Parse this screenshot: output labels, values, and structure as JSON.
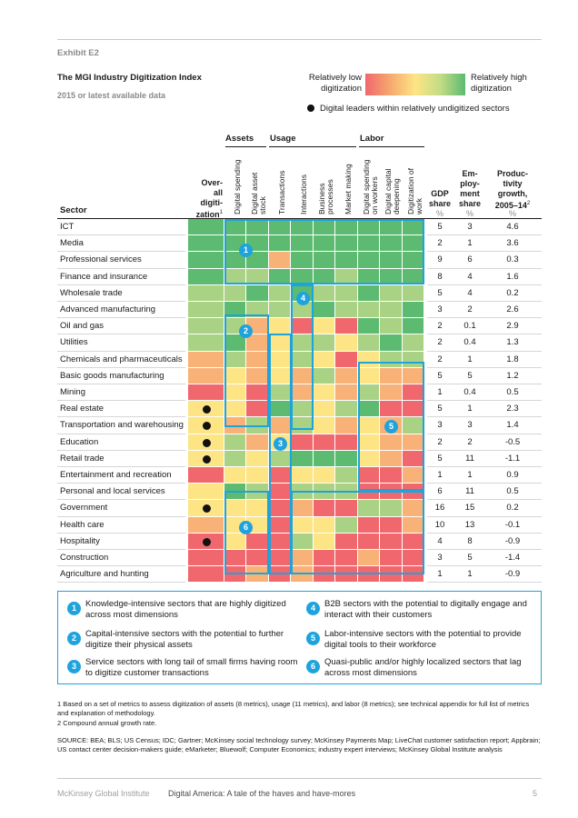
{
  "exhibit": "Exhibit E2",
  "title": "The MGI Industry Digitization Index",
  "subtitle": "2015 or latest available data",
  "legend": {
    "low": "Relatively low digitization",
    "high": "Relatively high digitization",
    "dot_label": "Digital leaders within relatively undigitized sectors"
  },
  "groups": {
    "assets": "Assets",
    "usage": "Usage",
    "labor": "Labor"
  },
  "headers": {
    "sector": "Sector",
    "overall": [
      "Over-",
      "all",
      "digiti-",
      "zation"
    ],
    "overall_sup": "1",
    "metrics": [
      [
        "Digital spending"
      ],
      [
        "Digital asset",
        "stock"
      ],
      [
        "Transactions"
      ],
      [
        "Interactions"
      ],
      [
        "Business",
        "processes"
      ],
      [
        "Market making"
      ],
      [
        "Digital spending",
        "on workers"
      ],
      [
        "Digital capital",
        "deepening"
      ],
      [
        "Digitization of",
        "work"
      ]
    ],
    "gdp": [
      "GDP",
      "share"
    ],
    "emp": [
      "Em-",
      "ploy-",
      "ment",
      "share"
    ],
    "prod": [
      "Produc-",
      "tivity",
      "growth,",
      "2005–14"
    ],
    "prod_sup": "2",
    "pct": "%"
  },
  "palette": {
    "G": "#5cbb71",
    "L": "#a9d285",
    "Y": "#fde585",
    "O": "#f8b277",
    "R": "#f0686d"
  },
  "rows": [
    {
      "sector": "ICT",
      "cells": "GGGGGGGGGG",
      "leader": false,
      "gdp": "5",
      "emp": "3",
      "prod": "4.6"
    },
    {
      "sector": "Media",
      "cells": "GGGGGGGGGG",
      "leader": false,
      "gdp": "2",
      "emp": "1",
      "prod": "3.6"
    },
    {
      "sector": "Professional services",
      "cells": "GGGOGGGGGG",
      "leader": false,
      "gdp": "9",
      "emp": "6",
      "prod": "0.3"
    },
    {
      "sector": "Finance and insurance",
      "cells": "GLLGGGLGGG",
      "leader": false,
      "gdp": "8",
      "emp": "4",
      "prod": "1.6"
    },
    {
      "sector": "Wholesale trade",
      "cells": "LLGLGLLGLL",
      "leader": false,
      "gdp": "5",
      "emp": "4",
      "prod": "0.2"
    },
    {
      "sector": "Advanced manufacturing",
      "cells": "LGLLLGLLLG",
      "leader": false,
      "gdp": "3",
      "emp": "2",
      "prod": "2.6"
    },
    {
      "sector": "Oil and gas",
      "cells": "LLOYRYRGLG",
      "leader": false,
      "gdp": "2",
      "emp": "0.1",
      "prod": "2.9"
    },
    {
      "sector": "Utilities",
      "cells": "LGOYLLYLGL",
      "leader": false,
      "gdp": "2",
      "emp": "0.4",
      "prod": "1.3"
    },
    {
      "sector": "Chemicals and pharmaceuticals",
      "cells": "OLOYLYRYLL",
      "leader": false,
      "gdp": "2",
      "emp": "1",
      "prod": "1.8"
    },
    {
      "sector": "Basic goods manufacturing",
      "cells": "OYOYOLOYOO",
      "leader": false,
      "gdp": "5",
      "emp": "5",
      "prod": "1.2"
    },
    {
      "sector": "Mining",
      "cells": "RYRLOYOLOR",
      "leader": false,
      "gdp": "1",
      "emp": "0.4",
      "prod": "0.5"
    },
    {
      "sector": "Real estate",
      "cells": "YYRGLYLGRR",
      "leader": true,
      "gdp": "5",
      "emp": "1",
      "prod": "2.3"
    },
    {
      "sector": "Transportation and warehousing",
      "cells": "YOLOLYOYOL",
      "leader": true,
      "gdp": "3",
      "emp": "3",
      "prod": "1.4"
    },
    {
      "sector": "Education",
      "cells": "YLOYRRRYOO",
      "leader": true,
      "gdp": "2",
      "emp": "2",
      "prod": "-0.5"
    },
    {
      "sector": "Retail trade",
      "cells": "YLYLGGGYOR",
      "leader": true,
      "gdp": "5",
      "emp": "11",
      "prod": "-1.1"
    },
    {
      "sector": "Entertainment and recreation",
      "cells": "RYYRYYLRRO",
      "leader": false,
      "gdp": "1",
      "emp": "1",
      "prod": "0.9"
    },
    {
      "sector": "Personal and local services",
      "cells": "YGLRLLLRRR",
      "leader": false,
      "gdp": "6",
      "emp": "11",
      "prod": "0.5"
    },
    {
      "sector": "Government",
      "cells": "YYYRORRLLO",
      "leader": true,
      "gdp": "16",
      "emp": "15",
      "prod": "0.2"
    },
    {
      "sector": "Health care",
      "cells": "OYYRYYLRRO",
      "leader": false,
      "gdp": "10",
      "emp": "13",
      "prod": "-0.1"
    },
    {
      "sector": "Hospitality",
      "cells": "RYRRLYRRRR",
      "leader": true,
      "gdp": "4",
      "emp": "8",
      "prod": "-0.9"
    },
    {
      "sector": "Construction",
      "cells": "RRRRORRORR",
      "leader": false,
      "gdp": "3",
      "emp": "5",
      "prod": "-1.4"
    },
    {
      "sector": "Agriculture and hunting",
      "cells": "RRORORRRRR",
      "leader": false,
      "gdp": "1",
      "emp": "1",
      "prod": "-0.9"
    }
  ],
  "callouts": [
    "1",
    "2",
    "3",
    "4",
    "5",
    "6"
  ],
  "key": [
    {
      "n": "1",
      "text": "Knowledge-intensive sectors that are highly digitized across most dimensions"
    },
    {
      "n": "2",
      "text": "Capital-intensive sectors with the potential to further digitize their physical assets"
    },
    {
      "n": "3",
      "text": "Service sectors with long tail of small firms having room to digitize customer transactions"
    },
    {
      "n": "4",
      "text": "B2B sectors with the potential to digitally engage and interact with their customers"
    },
    {
      "n": "5",
      "text": "Labor-intensive sectors with the potential to provide digital tools to their workforce"
    },
    {
      "n": "6",
      "text": "Quasi-public and/or highly localized sectors that lag across most dimensions"
    }
  ],
  "footnotes": [
    "1  Based on a set of metrics to assess digitization of assets (8 metrics), usage (11 metrics), and labor (8 metrics); see technical appendix for full list of metrics and explanation of methodology.",
    "2  Compound annual growth rate."
  ],
  "source": "SOURCE:  BEA; BLS; US Census; IDC; Gartner; McKinsey social technology survey; McKinsey Payments Map; LiveChat customer satisfaction report; Appbrain; US contact center decision-makers guide; eMarketer; Bluewolf; Computer Economics; industry expert interviews; McKinsey Global Institute analysis",
  "footer": {
    "left": "McKinsey Global Institute",
    "middle": "Digital America: A tale of the haves and have-mores",
    "page": "5"
  }
}
